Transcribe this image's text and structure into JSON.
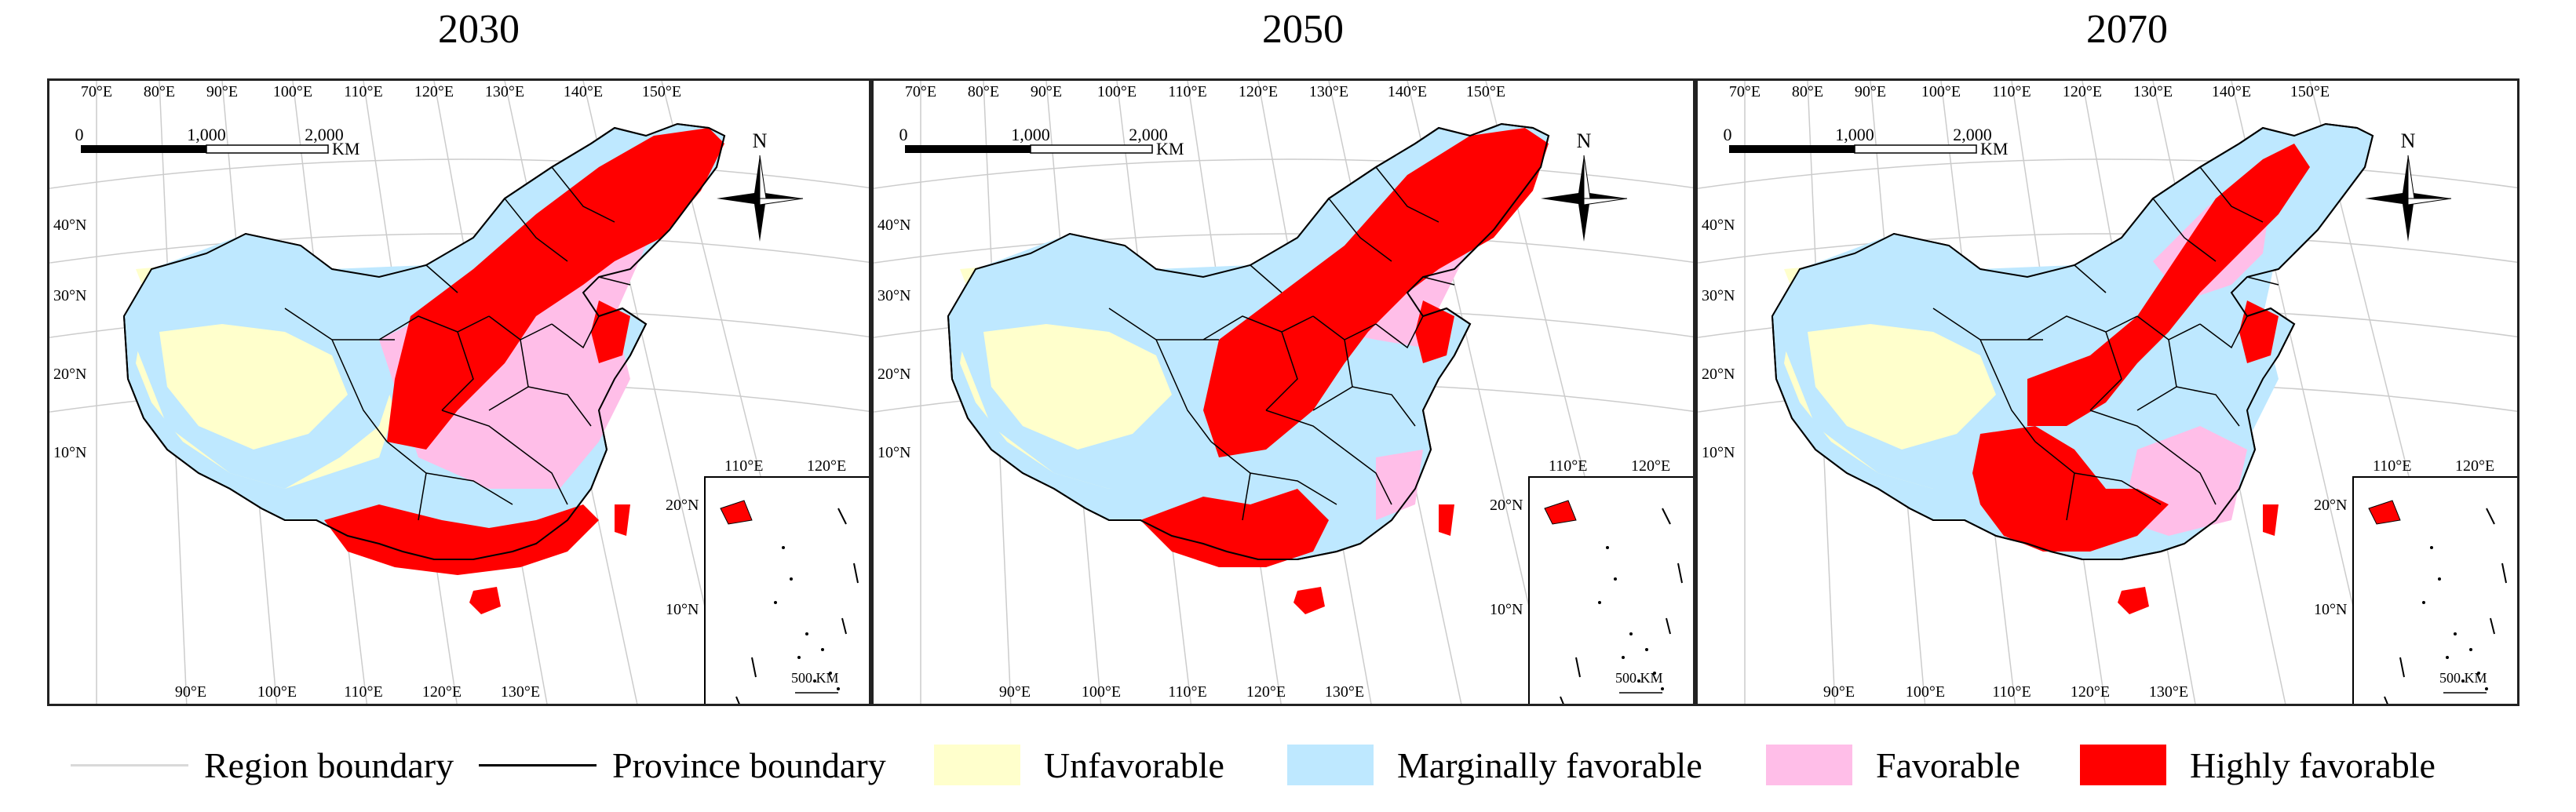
{
  "panels": [
    {
      "title": "2030"
    },
    {
      "title": "2050"
    },
    {
      "title": "2070"
    }
  ],
  "top_lon_labels": [
    "70°E",
    "80°E",
    "90°E",
    "100°E",
    "110°E",
    "120°E",
    "130°E",
    "140°E",
    "150°E"
  ],
  "bottom_lon_labels": [
    "90°E",
    "100°E",
    "110°E",
    "120°E",
    "130°E"
  ],
  "lat_labels": [
    "40°N",
    "30°N",
    "20°N",
    "10°N"
  ],
  "inset": {
    "lon_labels": [
      "110°E",
      "120°E"
    ],
    "lat_labels": [
      "20°N",
      "10°N"
    ],
    "scale": "500 KM"
  },
  "scalebar": {
    "labels": [
      "0",
      "1,000",
      "2,000"
    ],
    "unit": "KM"
  },
  "north_label": "N",
  "legend": {
    "region_boundary": "Region boundary",
    "province_boundary": "Province boundary",
    "unfavorable": "Unfavorable",
    "marginally_favorable": "Marginally favorable",
    "favorable": "Favorable",
    "highly_favorable": "Highly favorable"
  },
  "colors": {
    "unfavorable": "#ffffcc",
    "marginally_favorable": "#bee8ff",
    "favorable": "#ffbee8",
    "highly_favorable": "#ff0000",
    "region_boundary": "#d9d9d9",
    "province_boundary": "#000000"
  }
}
